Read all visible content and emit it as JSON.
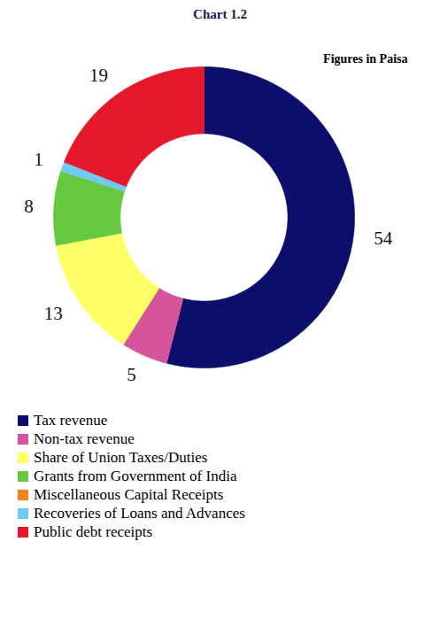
{
  "chart_data": {
    "type": "pie",
    "title": "Chart 1.2",
    "subtitle": "Figures in Paisa",
    "categories": [
      "Tax revenue",
      "Non-tax revenue",
      "Share of Union Taxes/Duties",
      "Grants from Government of India",
      "Miscellaneous Capital Receipts",
      "Recoveries of Loans and Advances",
      "Public debt receipts"
    ],
    "values": [
      54,
      5,
      13,
      8,
      0,
      1,
      19
    ],
    "colors": [
      "#0b0f6b",
      "#d6549c",
      "#ffff66",
      "#66c840",
      "#f0841e",
      "#6fcaf2",
      "#e4182a"
    ],
    "data_labels": true,
    "legend": "bottom",
    "tick_labels": false
  }
}
